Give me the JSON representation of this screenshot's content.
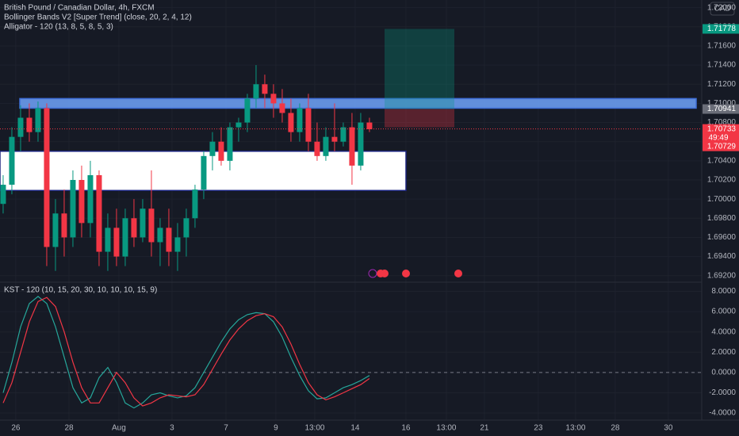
{
  "header": {
    "symbol": "British Pound / Canadian Dollar, 4h, FXCM",
    "indicator1": "Bollinger Bands V2 [Super Trend] (close, 20, 2, 4, 12)",
    "indicator2": "Alligator - 120 (13, 8, 5, 8, 5, 3)",
    "currency": "CAD",
    "countdown": "49:49"
  },
  "chart_data": [
    {
      "type": "candlestick",
      "up_color": "#089981",
      "down_color": "#f23645",
      "open": [
        1.6995,
        1.7015,
        1.7065,
        1.7085,
        1.707,
        1.7095,
        1.695,
        1.6985,
        1.696,
        1.702,
        1.6975,
        1.7025,
        1.6945,
        1.697,
        1.694,
        1.698,
        1.696,
        1.699,
        1.6955,
        1.697,
        1.6945,
        1.696,
        1.698,
        1.701,
        1.7045,
        1.706,
        1.704,
        1.7075,
        1.708,
        1.7105,
        1.712,
        1.711,
        1.71,
        1.709,
        1.707,
        1.7095,
        1.706,
        1.7045,
        1.7065,
        1.706,
        1.7075,
        1.7035,
        1.708
      ],
      "high": [
        1.7025,
        1.7075,
        1.7098,
        1.71,
        1.7102,
        1.71,
        1.7,
        1.701,
        1.703,
        1.7035,
        1.704,
        1.703,
        1.6985,
        1.699,
        1.699,
        1.7,
        1.7,
        1.703,
        1.698,
        1.699,
        1.6975,
        1.699,
        1.7015,
        1.705,
        1.707,
        1.7075,
        1.708,
        1.7085,
        1.711,
        1.714,
        1.713,
        1.712,
        1.7115,
        1.7105,
        1.71,
        1.711,
        1.708,
        1.7075,
        1.71,
        1.708,
        1.709,
        1.709,
        1.7085
      ],
      "low": [
        1.6985,
        1.7005,
        1.705,
        1.706,
        1.706,
        1.693,
        1.6925,
        1.694,
        1.695,
        1.696,
        1.696,
        1.693,
        1.6925,
        1.693,
        1.693,
        1.695,
        1.6955,
        1.694,
        1.693,
        1.693,
        1.6925,
        1.694,
        1.697,
        1.7,
        1.703,
        1.7035,
        1.703,
        1.706,
        1.707,
        1.7095,
        1.7095,
        1.7085,
        1.708,
        1.706,
        1.706,
        1.705,
        1.704,
        1.704,
        1.705,
        1.7055,
        1.7015,
        1.703,
        1.707
      ],
      "close": [
        1.7015,
        1.7065,
        1.7085,
        1.707,
        1.7095,
        1.695,
        1.6985,
        1.696,
        1.702,
        1.6975,
        1.7025,
        1.6945,
        1.697,
        1.694,
        1.698,
        1.696,
        1.699,
        1.6955,
        1.697,
        1.6945,
        1.696,
        1.698,
        1.701,
        1.7045,
        1.706,
        1.704,
        1.7075,
        1.708,
        1.7105,
        1.712,
        1.711,
        1.71,
        1.709,
        1.707,
        1.7095,
        1.706,
        1.7045,
        1.7065,
        1.706,
        1.7075,
        1.7035,
        1.708,
        1.7073
      ],
      "ylim": [
        1.6914,
        1.7208
      ],
      "yticks": [
        {
          "value": 1.692,
          "label": "1.69200"
        },
        {
          "value": 1.694,
          "label": "1.69400"
        },
        {
          "value": 1.696,
          "label": "1.69600"
        },
        {
          "value": 1.698,
          "label": "1.69800"
        },
        {
          "value": 1.7,
          "label": "1.70000"
        },
        {
          "value": 1.702,
          "label": "1.70200"
        },
        {
          "value": 1.704,
          "label": "1.70400"
        },
        {
          "value": 1.706,
          "label": "1.70600"
        },
        {
          "value": 1.708,
          "label": "1.70800"
        },
        {
          "value": 1.71,
          "label": "1.71000"
        },
        {
          "value": 1.712,
          "label": "1.71200"
        },
        {
          "value": 1.714,
          "label": "1.71400"
        },
        {
          "value": 1.716,
          "label": "1.71600"
        },
        {
          "value": 1.718,
          "label": "1.71800"
        },
        {
          "value": 1.72,
          "label": "1.72000"
        }
      ],
      "xlim": [
        -0.36,
        80.1
      ],
      "xticks": [
        {
          "value": 1.45,
          "label": "26"
        },
        {
          "value": 7.55,
          "label": "28"
        },
        {
          "value": 13.27,
          "label": "Aug"
        },
        {
          "value": 19.36,
          "label": "3"
        },
        {
          "value": 25.55,
          "label": "7"
        },
        {
          "value": 31.27,
          "label": "9"
        },
        {
          "value": 35.73,
          "label": "13:00"
        },
        {
          "value": 40.36,
          "label": "14"
        },
        {
          "value": 46.18,
          "label": "16"
        },
        {
          "value": 50.82,
          "label": "13:00"
        },
        {
          "value": 55.18,
          "label": "21"
        },
        {
          "value": 61.36,
          "label": "23"
        },
        {
          "value": 65.64,
          "label": "13:00"
        },
        {
          "value": 70.18,
          "label": "28"
        },
        {
          "value": 76.27,
          "label": "30"
        }
      ],
      "zones": [
        {
          "top": 1.7105,
          "bottom": 1.7095,
          "color": "#6a9cf0"
        },
        {
          "top": 1.705,
          "bottom": 1.7009,
          "color": "#ffffff"
        }
      ],
      "price_labels": [
        {
          "value": 1.71778,
          "label": "1.71778",
          "color": "#089981"
        },
        {
          "value": 1.70941,
          "label": "1.70941",
          "color": "#6a6d78"
        },
        {
          "value": 1.70733,
          "label": "1.70733",
          "color": "#f23645"
        },
        {
          "value": 1.70729,
          "label": "1.70729",
          "color": "#f23645"
        }
      ],
      "stop": 1.7075
    },
    {
      "type": "line",
      "title": "KST - 120 (10, 15, 20, 30, 10, 10, 10, 15, 9)",
      "series": [
        {
          "color": "#26a69a",
          "values": [
            -2,
            1,
            4.5,
            6.8,
            7.5,
            6.8,
            4.5,
            1.5,
            -1.5,
            -3,
            -2.5,
            -0.5,
            0.5,
            -1,
            -3,
            -3.5,
            -3,
            -2.2,
            -2,
            -2.3,
            -2.5,
            -2.3,
            -1.5,
            0,
            1.5,
            3,
            4.3,
            5.2,
            5.7,
            5.9,
            5.8,
            5,
            3.5,
            1.5,
            -0.3,
            -1.8,
            -2.6,
            -2.5,
            -2,
            -1.5,
            -1.2,
            -0.8,
            -0.3
          ]
        },
        {
          "color": "#f23645",
          "values": [
            -3,
            -1,
            2,
            5,
            7,
            7.4,
            6.5,
            4,
            1,
            -1.5,
            -3,
            -3,
            -1.5,
            0,
            -1,
            -2.5,
            -3.3,
            -3,
            -2.5,
            -2.2,
            -2.3,
            -2.4,
            -2.2,
            -1.2,
            0.3,
            1.8,
            3.2,
            4.3,
            5.1,
            5.6,
            5.8,
            5.5,
            4.5,
            2.8,
            0.8,
            -1,
            -2.2,
            -2.7,
            -2.4,
            -2,
            -1.6,
            -1.2,
            -0.6
          ]
        }
      ],
      "ylim": [
        -4.7,
        8.9
      ],
      "yticks": [
        {
          "value": -4,
          "label": "-4.0000"
        },
        {
          "value": -2,
          "label": "-2.0000"
        },
        {
          "value": 0,
          "label": "0.0000"
        },
        {
          "value": 2,
          "label": "2.0000"
        },
        {
          "value": 4,
          "label": "4.0000"
        },
        {
          "value": 6,
          "label": "6.0000"
        },
        {
          "value": 8,
          "label": "8.0000"
        }
      ],
      "baseline": 0,
      "xlim": [
        -0.36,
        80.1
      ]
    }
  ]
}
